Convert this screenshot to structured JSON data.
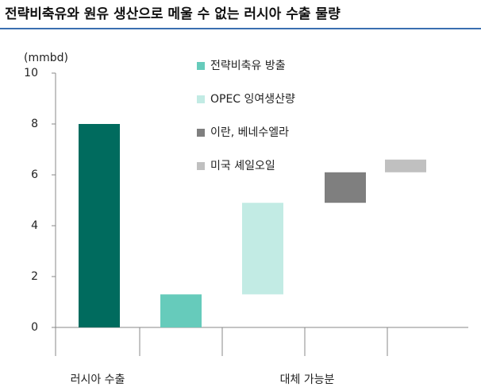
{
  "chart_data": {
    "type": "waterfall",
    "title": "전략비축유와 원유 생산으로 메울 수 없는 러시아 수출 물량",
    "y_label": "(mmbd)",
    "ylim": [
      0,
      10
    ],
    "yticks": [
      0,
      2,
      4,
      6,
      8,
      10
    ],
    "total": {
      "category": "러시아 수출",
      "value": 8,
      "color": "#006b5e"
    },
    "substitutes": {
      "category": "대체 가능분",
      "series": [
        {
          "name": "전략비축유 방출",
          "color": "#66cbbb",
          "value": 1.3
        },
        {
          "name": "OPEC 잉여생산량",
          "color": "#c2ebe4",
          "value": 3.6
        },
        {
          "name": "이란, 베네수엘라",
          "color": "#7f7f7f",
          "value": 1.2
        },
        {
          "name": "미국 셰일오일",
          "color": "#c0c0c0",
          "value": 0.5
        }
      ]
    }
  }
}
